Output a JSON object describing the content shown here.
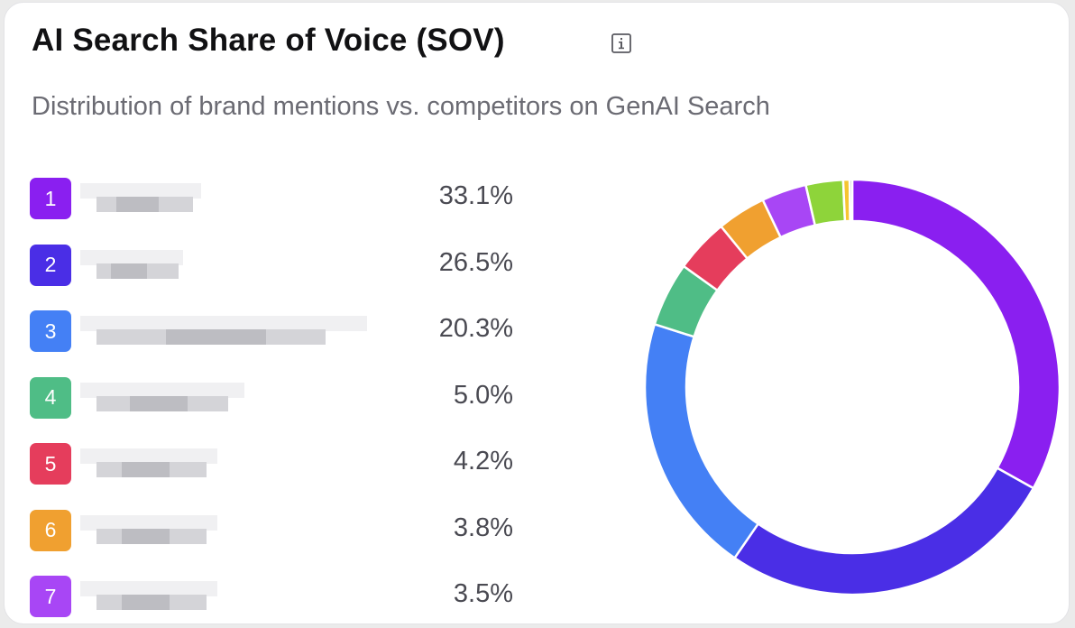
{
  "title": "AI Search Share of Voice (SOV)",
  "info_icon": "info-icon",
  "subtitle": "Distribution of brand mentions vs. competitors on GenAI Search",
  "chart_data": {
    "type": "pie",
    "title": "AI Search Share of Voice (SOV)",
    "subtitle": "Distribution of brand mentions vs. competitors on GenAI Search",
    "hole": 0.8,
    "slices": [
      {
        "rank": "1",
        "value": 33.1,
        "label": "33.1%",
        "color": "#8a1ff0"
      },
      {
        "rank": "2",
        "value": 26.5,
        "label": "26.5%",
        "color": "#4a2ee6"
      },
      {
        "rank": "3",
        "value": 20.3,
        "label": "20.3%",
        "color": "#4480f5"
      },
      {
        "rank": "4",
        "value": 5.0,
        "label": "5.0%",
        "color": "#4fbd86"
      },
      {
        "rank": "5",
        "value": 4.2,
        "label": "4.2%",
        "color": "#e53d5c"
      },
      {
        "rank": "6",
        "value": 3.8,
        "label": "3.8%",
        "color": "#f0a030"
      },
      {
        "rank": "7",
        "value": 3.5,
        "label": "3.5%",
        "color": "#a846f5"
      },
      {
        "rank": "",
        "value": 2.9,
        "label": "",
        "color": "#8ed43a"
      },
      {
        "rank": "",
        "value": 0.5,
        "label": "",
        "color": "#f5c531"
      },
      {
        "rank": "",
        "value": 0.2,
        "label": "",
        "color": "#9aa0a6"
      }
    ]
  }
}
